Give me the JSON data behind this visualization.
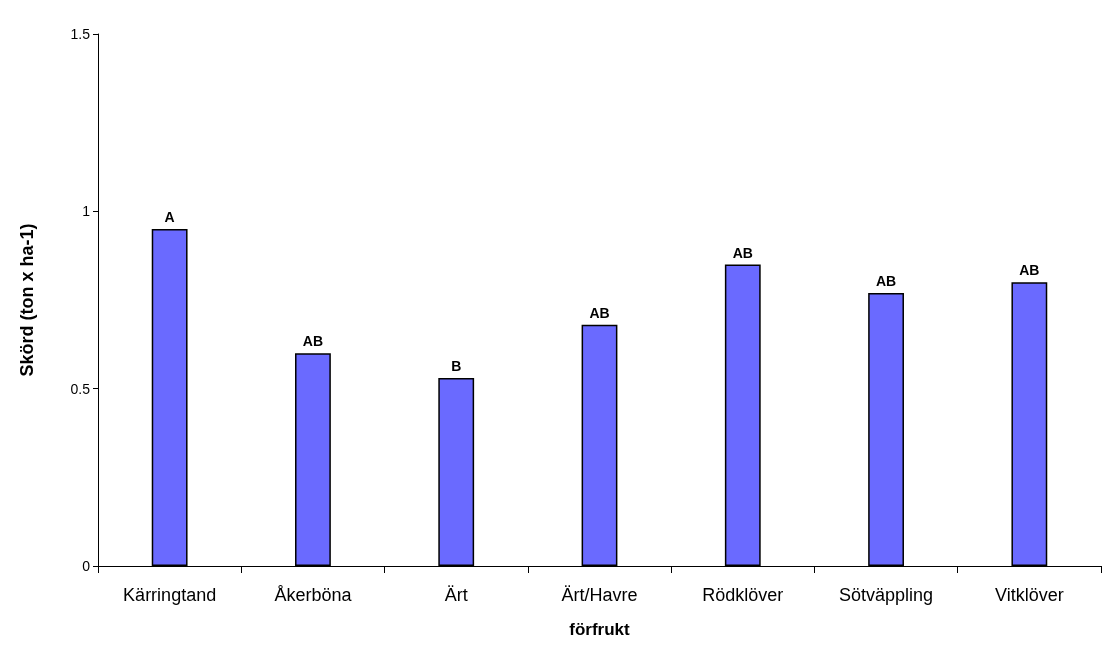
{
  "chart_data": {
    "type": "bar",
    "xlabel": "förfrukt",
    "ylabel": "Skörd (ton x ha-1)",
    "categories": [
      "Kärringtand",
      "Åkerböna",
      "Ärt",
      "Ärt/Havre",
      "Rödklöver",
      "Sötväppling",
      "Vitklöver"
    ],
    "values": [
      0.95,
      0.6,
      0.53,
      0.68,
      0.85,
      0.77,
      0.8
    ],
    "value_labels": [
      "A",
      "AB",
      "B",
      "AB",
      "AB",
      "AB",
      "AB"
    ],
    "color": "#6a6aff",
    "ylim": [
      0,
      1.5
    ],
    "yticks": [
      0,
      0.5,
      1,
      1.5
    ],
    "grid": false
  }
}
